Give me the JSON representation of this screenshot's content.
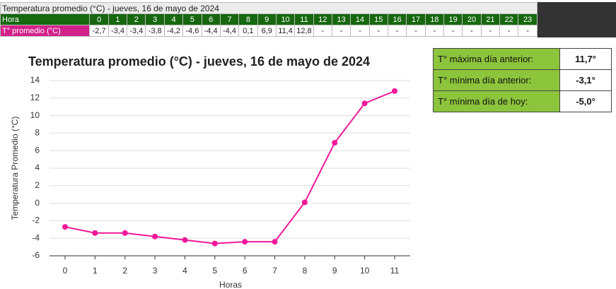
{
  "table": {
    "title": "Temperatura promedio (°C) - jueves, 16 de mayo de 2024",
    "header": [
      "Hora",
      "0",
      "1",
      "2",
      "3",
      "4",
      "5",
      "6",
      "7",
      "8",
      "9",
      "10",
      "11",
      "12",
      "13",
      "14",
      "15",
      "16",
      "17",
      "18",
      "19",
      "20",
      "21",
      "22",
      "23"
    ],
    "rows": [
      [
        "T° promedio (°C)",
        "-2,7",
        "-3,4",
        "-3,4",
        "-3,8",
        "-4,2",
        "-4,6",
        "-4,4",
        "-4,4",
        "0,1",
        "6,9",
        "11,4",
        "12,8",
        "-",
        "-",
        "-",
        "-",
        "-",
        "-",
        "-",
        "-",
        "-",
        "-",
        "-",
        "-"
      ]
    ]
  },
  "chart_data": {
    "type": "line",
    "title": "Temperatura promedio (°C) - jueves, 16 de mayo de 2024",
    "x_label": "Horas",
    "y_label": "Temperatura Promedio (°C)",
    "categories": [
      "0",
      "1",
      "2",
      "3",
      "4",
      "5",
      "6",
      "7",
      "8",
      "9",
      "10",
      "11"
    ],
    "series": [
      {
        "name": "T° promedio (°C)",
        "color": "#f0189a",
        "values": [
          -2.7,
          -3.4,
          -3.4,
          -3.8,
          -4.2,
          -4.6,
          -4.4,
          -4.4,
          0.1,
          6.9,
          11.4,
          12.8
        ]
      }
    ],
    "ylim": [
      -6,
      14
    ],
    "yticks": [
      -6,
      -4,
      -2,
      0,
      2,
      4,
      6,
      8,
      10,
      12,
      14
    ],
    "grid": true,
    "legend": false
  },
  "summary": {
    "rows": [
      [
        "T° máxima día anterior:",
        "11,7°"
      ],
      [
        "T° mínima día anterior:",
        "-3,1°"
      ],
      [
        "T° mínima día de hoy:",
        "-5,0°"
      ]
    ]
  }
}
